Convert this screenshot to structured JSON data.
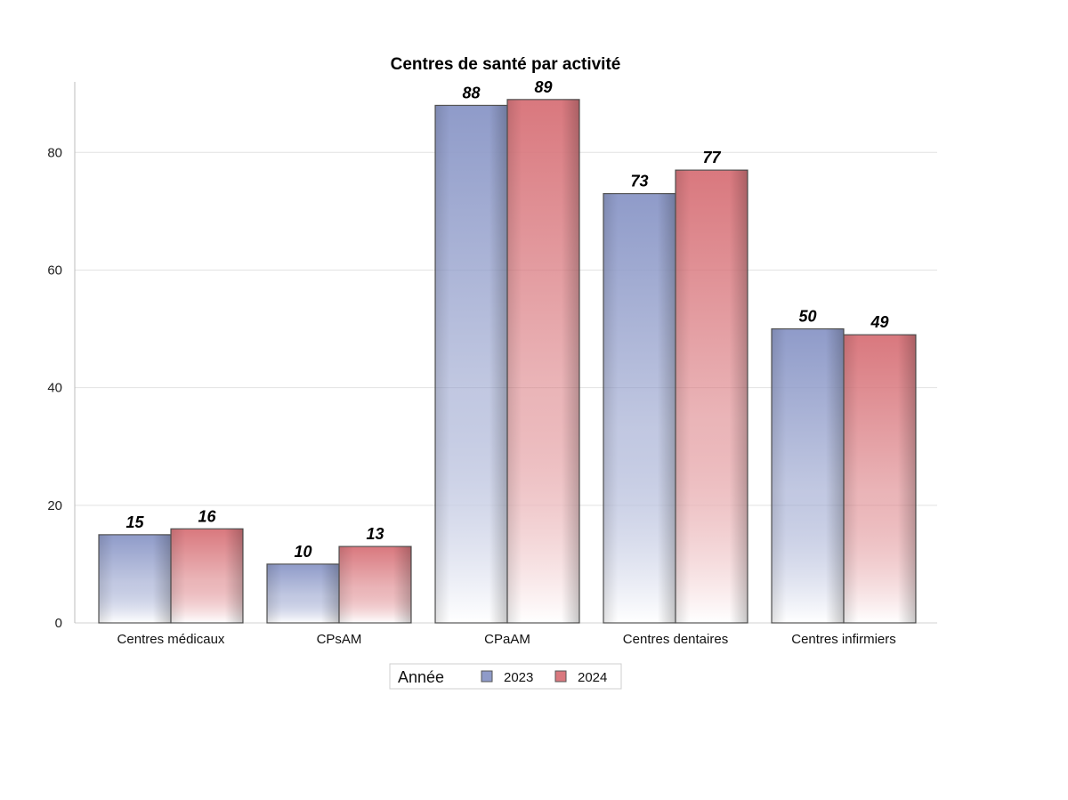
{
  "chart_data": {
    "type": "bar",
    "title": "Centres de santé par activité",
    "xlabel": "",
    "ylabel": "",
    "categories": [
      "Centres médicaux",
      "CPsAM",
      "CPaAM",
      "Centres dentaires",
      "Centres infirmiers"
    ],
    "series": [
      {
        "name": "2023",
        "values": [
          15,
          10,
          88,
          73,
          50
        ],
        "color": "#8f9bc9"
      },
      {
        "name": "2024",
        "values": [
          16,
          13,
          89,
          77,
          49
        ],
        "color": "#d9787e"
      }
    ],
    "ylim": [
      0,
      92
    ],
    "yticks": [
      0,
      20,
      40,
      60,
      80
    ],
    "grid": true,
    "legend": {
      "title": "Année",
      "placement": "bottom-center"
    }
  }
}
